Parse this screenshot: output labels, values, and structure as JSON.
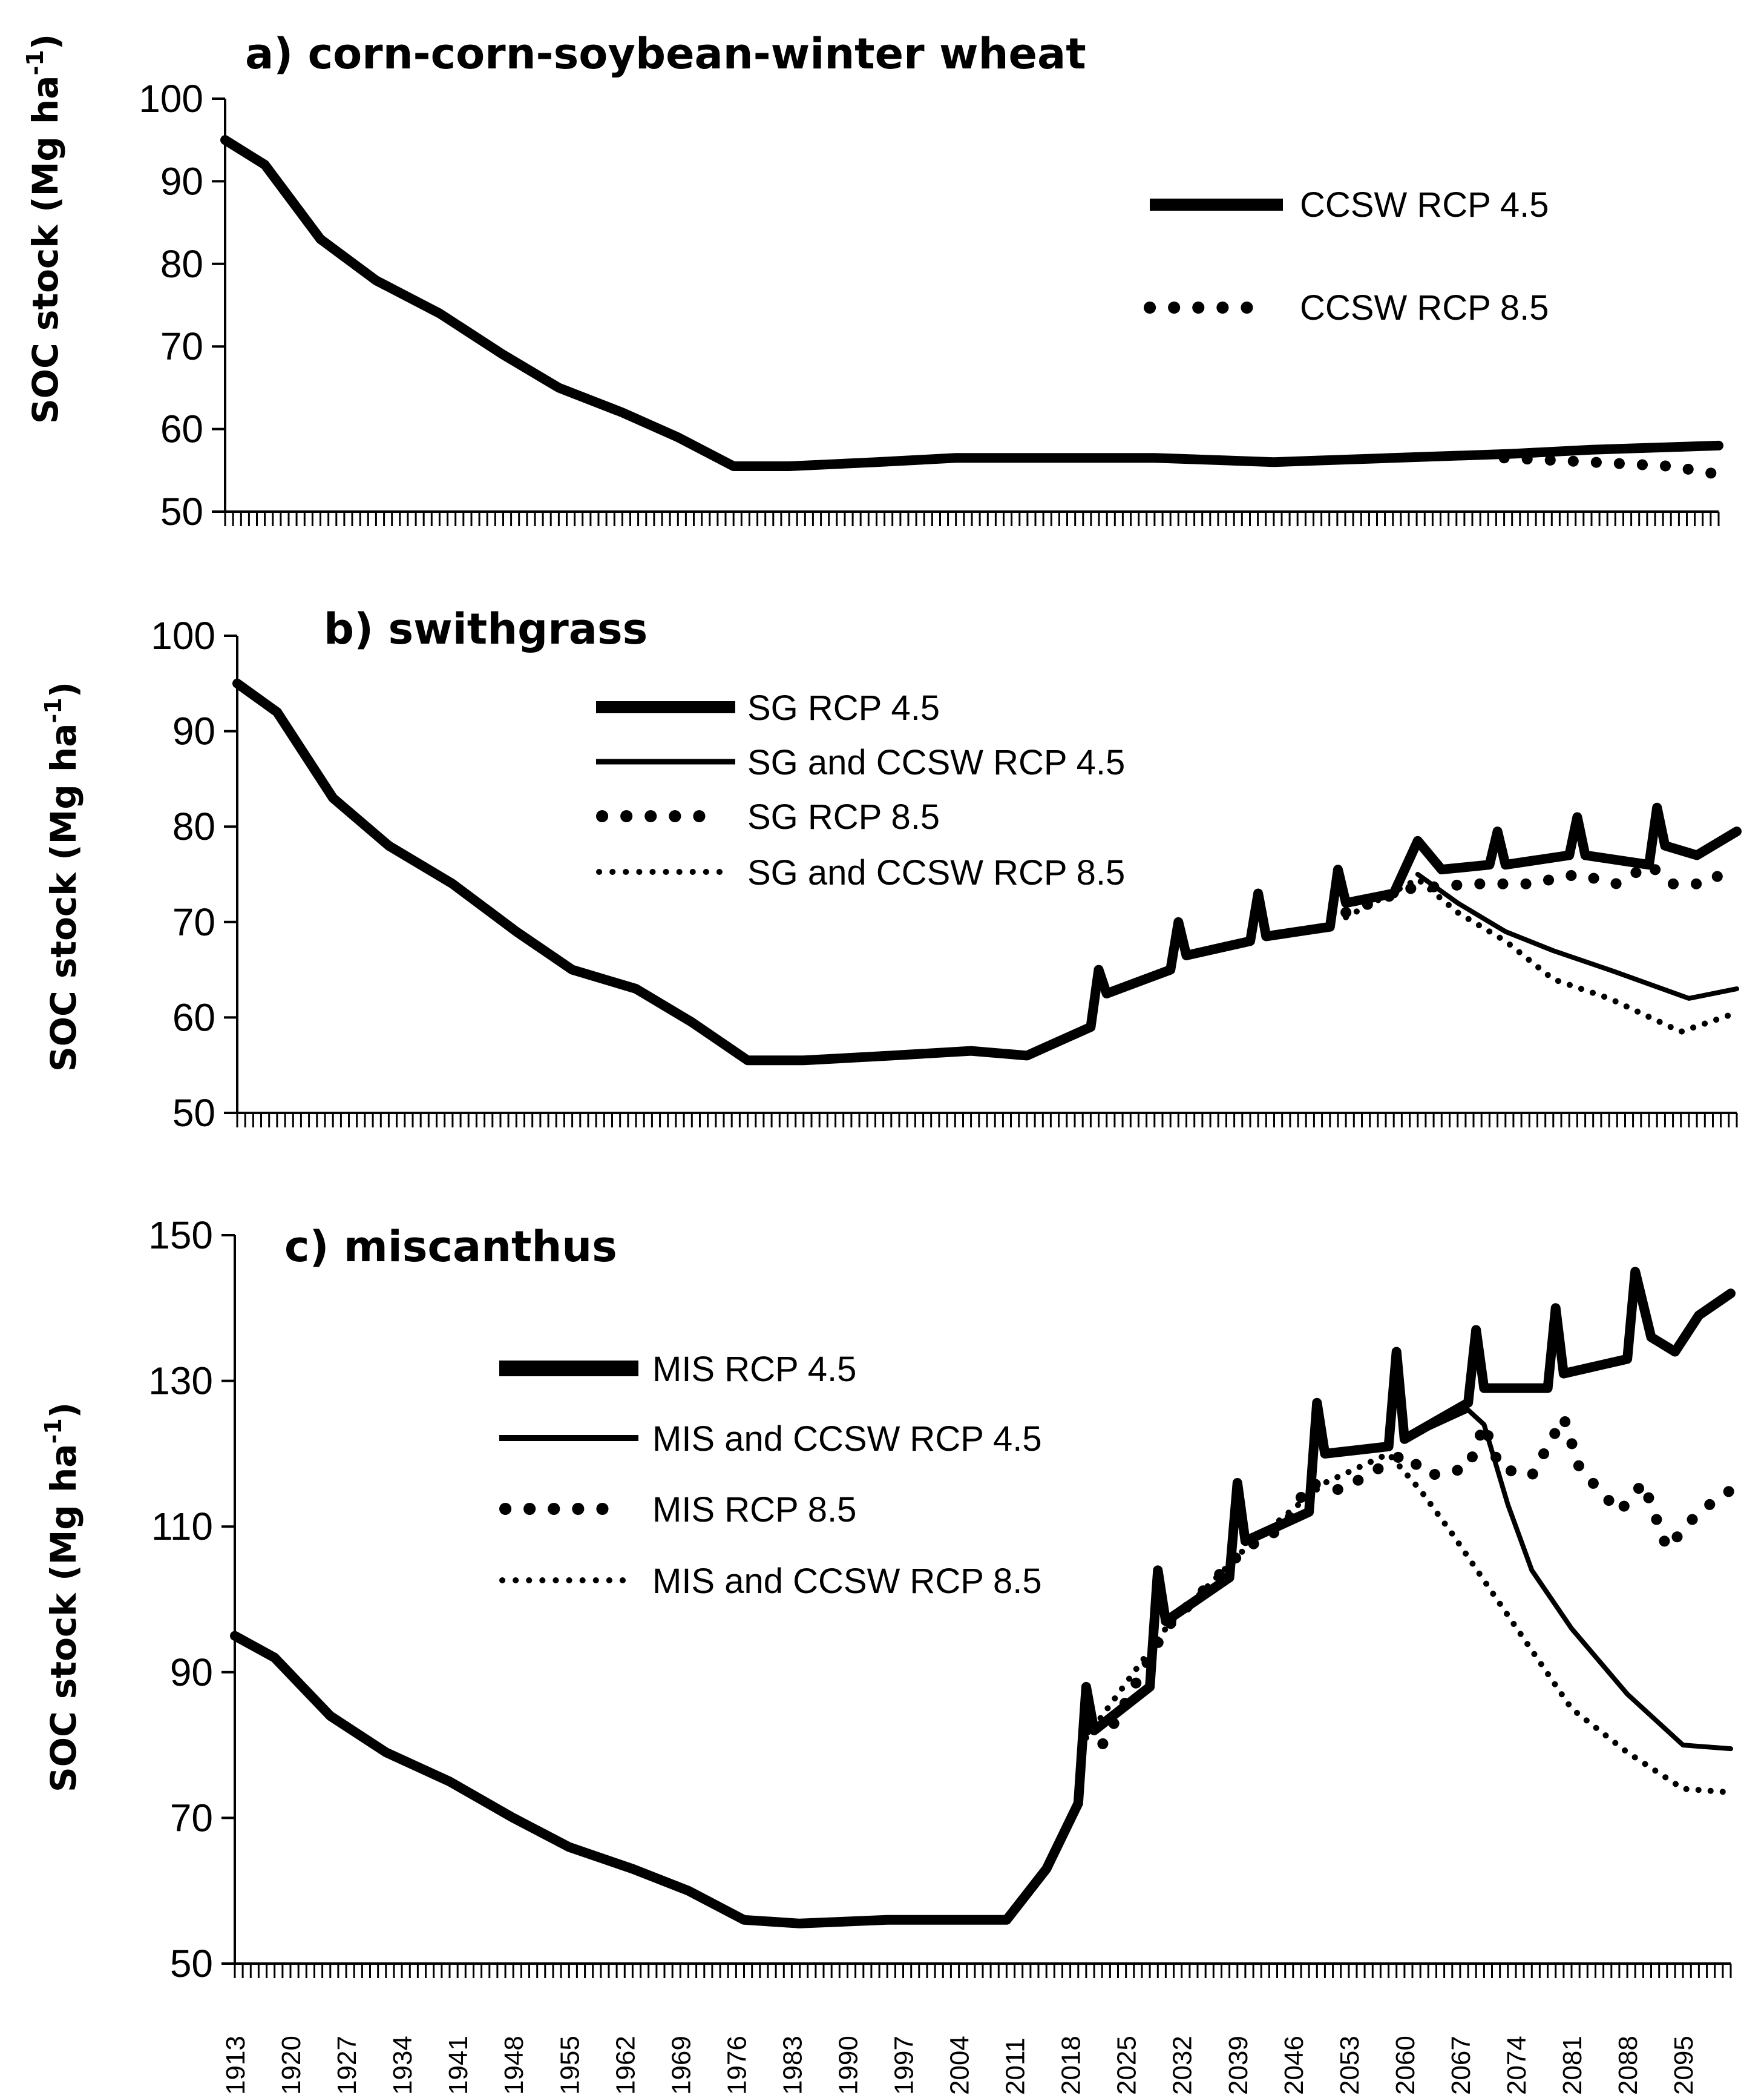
{
  "chart_data": [
    {
      "type": "line",
      "title": "a) corn-corn-soybean-winter wheat",
      "ylabel": "SOC stock (Mg ha-1)",
      "ylabel_base": "SOC stock (Mg ha",
      "ylabel_sup": "-1",
      "ylabel_close": ")",
      "ylim": [
        50,
        100
      ],
      "yticks": [
        50,
        60,
        70,
        80,
        90,
        100
      ],
      "xlim": [
        1913,
        2101
      ],
      "series": [
        {
          "name": "CCSW RCP 4.5",
          "style": "thick-solid",
          "points": [
            [
              1913,
              95
            ],
            [
              1918,
              92
            ],
            [
              1925,
              83
            ],
            [
              1932,
              78
            ],
            [
              1940,
              74
            ],
            [
              1948,
              69
            ],
            [
              1955,
              65
            ],
            [
              1963,
              62
            ],
            [
              1970,
              59
            ],
            [
              1977,
              55.5
            ],
            [
              1984,
              55.5
            ],
            [
              1995,
              56
            ],
            [
              2005,
              56.5
            ],
            [
              2015,
              56.5
            ],
            [
              2030,
              56.5
            ],
            [
              2045,
              56
            ],
            [
              2060,
              56.5
            ],
            [
              2075,
              57
            ],
            [
              2085,
              57.5
            ],
            [
              2101,
              58
            ]
          ]
        },
        {
          "name": "CCSW RCP 8.5",
          "style": "thick-dotted",
          "points": [
            [
              2074,
              56.5
            ],
            [
              2085,
              56
            ],
            [
              2095,
              55.5
            ],
            [
              2101,
              54.5
            ]
          ]
        }
      ]
    },
    {
      "type": "line",
      "title": "b) swithgrass",
      "ylabel": "SOC stock (Mg ha-1)",
      "ylabel_base": "SOC stock (Mg ha",
      "ylabel_sup": "-1",
      "ylabel_close": ")",
      "ylim": [
        50,
        100
      ],
      "yticks": [
        50,
        60,
        70,
        80,
        90,
        100
      ],
      "xlim": [
        1913,
        2101
      ],
      "series": [
        {
          "name": "SG RCP 4.5",
          "style": "thick-solid",
          "points": [
            [
              1913,
              95
            ],
            [
              1918,
              92
            ],
            [
              1925,
              83
            ],
            [
              1932,
              78
            ],
            [
              1940,
              74
            ],
            [
              1948,
              69
            ],
            [
              1955,
              65
            ],
            [
              1963,
              63
            ],
            [
              1970,
              59.5
            ],
            [
              1977,
              55.5
            ],
            [
              1984,
              55.5
            ],
            [
              1995,
              56
            ],
            [
              2005,
              56.5
            ],
            [
              2012,
              56
            ],
            [
              2020,
              59
            ],
            [
              2021,
              65
            ],
            [
              2022,
              62.5
            ],
            [
              2030,
              65
            ],
            [
              2031,
              70
            ],
            [
              2032,
              66.5
            ],
            [
              2040,
              68
            ],
            [
              2041,
              73
            ],
            [
              2042,
              68.5
            ],
            [
              2050,
              69.5
            ],
            [
              2051,
              75.5
            ],
            [
              2052,
              72
            ],
            [
              2058,
              73
            ],
            [
              2061,
              78.5
            ],
            [
              2064,
              75.5
            ],
            [
              2070,
              76
            ],
            [
              2071,
              79.5
            ],
            [
              2072,
              76
            ],
            [
              2080,
              77
            ],
            [
              2081,
              81
            ],
            [
              2082,
              77
            ],
            [
              2090,
              76
            ],
            [
              2091,
              82
            ],
            [
              2092,
              78
            ],
            [
              2096,
              77
            ],
            [
              2101,
              79.5
            ]
          ]
        },
        {
          "name": "SG and CCSW RCP 4.5",
          "style": "thin-solid",
          "points": [
            [
              2061,
              75
            ],
            [
              2066,
              72
            ],
            [
              2072,
              69
            ],
            [
              2078,
              67
            ],
            [
              2085,
              65
            ],
            [
              2095,
              62
            ],
            [
              2101,
              63
            ]
          ]
        },
        {
          "name": "SG RCP 8.5",
          "style": "thick-dotted",
          "points": [
            [
              2052,
              71
            ],
            [
              2060,
              73.5
            ],
            [
              2068,
              74
            ],
            [
              2075,
              74
            ],
            [
              2081,
              75
            ],
            [
              2086,
              74
            ],
            [
              2090,
              76
            ],
            [
              2093,
              74
            ],
            [
              2097,
              74
            ],
            [
              2101,
              76
            ]
          ]
        },
        {
          "name": "SG and  CCSW RCP 8.5",
          "style": "thin-dotted",
          "points": [
            [
              2052,
              70.5
            ],
            [
              2061,
              74.5
            ],
            [
              2066,
              71
            ],
            [
              2072,
              68
            ],
            [
              2078,
              64
            ],
            [
              2085,
              62
            ],
            [
              2094,
              58.5
            ],
            [
              2101,
              60.5
            ]
          ]
        }
      ]
    },
    {
      "type": "line",
      "title": "c) miscanthus",
      "ylabel": "SOC stock (Mg ha-1)",
      "ylabel_base": "SOC stock (Mg ha",
      "ylabel_sup": "-1",
      "ylabel_close": ")",
      "ylim": [
        50,
        150
      ],
      "yticks": [
        50,
        70,
        90,
        110,
        130,
        150
      ],
      "xlim": [
        1913,
        2101
      ],
      "xticks": [
        "1913",
        "1920",
        "1927",
        "1934",
        "1941",
        "1948",
        "1955",
        "1962",
        "1969",
        "1976",
        "1983",
        "1990",
        "1997",
        "2004",
        "2011",
        "2018",
        "2025",
        "2032",
        "2039",
        "2046",
        "2053",
        "2060",
        "2067",
        "2074",
        "2081",
        "2088",
        "2095"
      ],
      "series": [
        {
          "name": "MIS RCP 4.5",
          "style": "thick-solid",
          "points": [
            [
              1913,
              95
            ],
            [
              1918,
              92
            ],
            [
              1925,
              84
            ],
            [
              1932,
              79
            ],
            [
              1940,
              75
            ],
            [
              1948,
              70
            ],
            [
              1955,
              66
            ],
            [
              1963,
              63
            ],
            [
              1970,
              60
            ],
            [
              1977,
              56
            ],
            [
              1984,
              55.5
            ],
            [
              1995,
              56
            ],
            [
              2005,
              56
            ],
            [
              2010,
              56
            ],
            [
              2015,
              63
            ],
            [
              2019,
              72
            ],
            [
              2020,
              88
            ],
            [
              2021,
              82
            ],
            [
              2028,
              88
            ],
            [
              2029,
              104
            ],
            [
              2030,
              97
            ],
            [
              2038,
              103
            ],
            [
              2039,
              116
            ],
            [
              2040,
              108
            ],
            [
              2048,
              112
            ],
            [
              2049,
              127
            ],
            [
              2050,
              120
            ],
            [
              2058,
              121
            ],
            [
              2059,
              134
            ],
            [
              2060,
              122
            ],
            [
              2068,
              127
            ],
            [
              2069,
              137
            ],
            [
              2070,
              129
            ],
            [
              2078,
              129
            ],
            [
              2079,
              140
            ],
            [
              2080,
              131
            ],
            [
              2088,
              133
            ],
            [
              2089,
              145
            ],
            [
              2091,
              136
            ],
            [
              2094,
              134
            ],
            [
              2097,
              139
            ],
            [
              2101,
              142
            ]
          ]
        },
        {
          "name": "MIS and CCSW RCP 4.5",
          "style": "thin-solid",
          "points": [
            [
              2060,
              122
            ],
            [
              2068,
              126
            ],
            [
              2070,
              124
            ],
            [
              2073,
              113
            ],
            [
              2076,
              104
            ],
            [
              2081,
              96
            ],
            [
              2088,
              87
            ],
            [
              2095,
              80
            ],
            [
              2101,
              79.5
            ]
          ]
        },
        {
          "name": "MIS RCP 8.5",
          "style": "thick-dotted",
          "points": [
            [
              2020,
              82
            ],
            [
              2022,
              80
            ],
            [
              2030,
              96
            ],
            [
              2040,
              107
            ],
            [
              2045,
              110
            ],
            [
              2048,
              116
            ],
            [
              2052,
              115
            ],
            [
              2060,
              120
            ],
            [
              2063,
              117
            ],
            [
              2068,
              118
            ],
            [
              2070,
              124
            ],
            [
              2072,
              118
            ],
            [
              2076,
              117
            ],
            [
              2080,
              125
            ],
            [
              2082,
              118
            ],
            [
              2087,
              112
            ],
            [
              2090,
              116
            ],
            [
              2093,
              107
            ],
            [
              2097,
              112
            ],
            [
              2101,
              115
            ]
          ]
        },
        {
          "name": "MIS and CCSW RCP 8.5",
          "style": "thin-dotted",
          "points": [
            [
              2020,
              81
            ],
            [
              2030,
              96
            ],
            [
              2040,
              107
            ],
            [
              2050,
              116
            ],
            [
              2058,
              120
            ],
            [
              2062,
              115
            ],
            [
              2066,
              109
            ],
            [
              2071,
              101
            ],
            [
              2076,
              93
            ],
            [
              2081,
              85
            ],
            [
              2088,
              79
            ],
            [
              2095,
              74
            ],
            [
              2101,
              73.5
            ]
          ]
        }
      ]
    }
  ]
}
